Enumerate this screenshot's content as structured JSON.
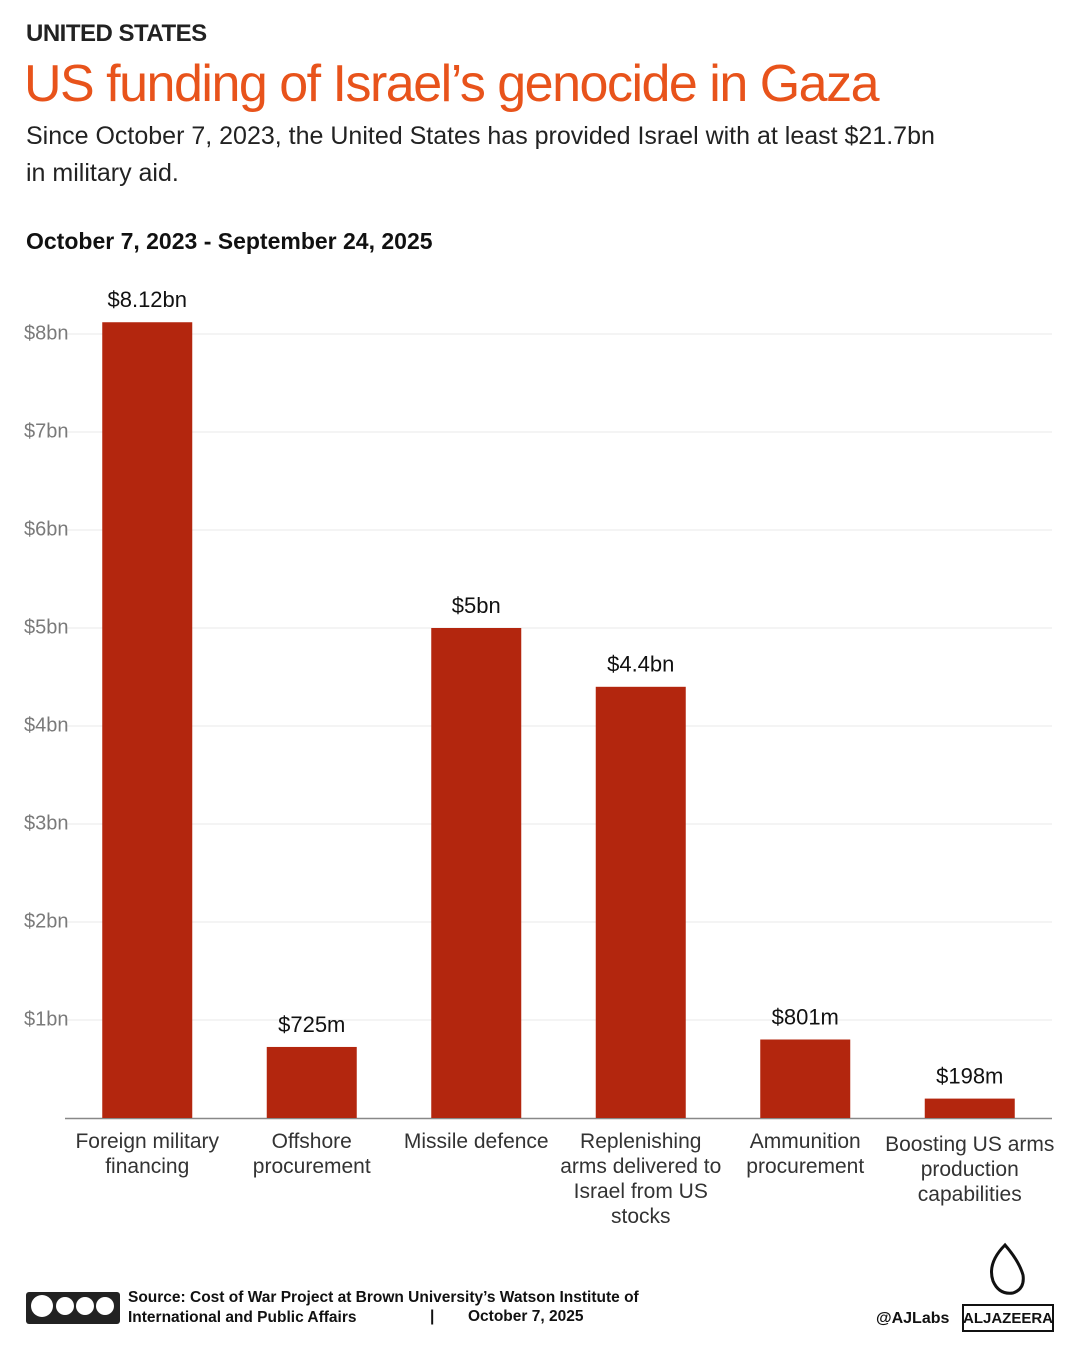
{
  "kicker": "UNITED STATES",
  "chart_data": {
    "type": "bar",
    "title": "US funding of Israel’s genocide in Gaza",
    "subtitle": "Since October 7, 2023, the United States has provided Israel with at least $21.7bn in military aid.",
    "period": "October 7, 2023 - September 24, 2025",
    "categories": [
      "Foreign military financing",
      "Offshore procurement",
      "Missile defence",
      "Replenishing arms delivered to Israel from US stocks",
      "Ammunition procurement",
      "Boosting US arms production capabilities"
    ],
    "values": [
      8.12,
      0.725,
      5,
      4.4,
      0.801,
      0.198
    ],
    "value_labels": [
      "$8.12bn",
      "$725m",
      "$5bn",
      "$4.4bn",
      "$801m",
      "$198m"
    ],
    "color": "#b3260e",
    "ylim": [
      0,
      8.5
    ],
    "yticks": [
      {
        "value": 1,
        "label": "$1bn"
      },
      {
        "value": 2,
        "label": "$2bn"
      },
      {
        "value": 3,
        "label": "$3bn"
      },
      {
        "value": 4,
        "label": "$4bn"
      },
      {
        "value": 5,
        "label": "$5bn"
      },
      {
        "value": 6,
        "label": "$6bn"
      },
      {
        "value": 7,
        "label": "$7bn"
      },
      {
        "value": 8,
        "label": "$8bn"
      }
    ],
    "grid": true
  },
  "footer": {
    "source": "Source:  Cost of War Project at Brown University’s Watson Institute of International and Public Affairs",
    "separator": "|",
    "date": "October 7, 2025",
    "handle": "@AJLabs",
    "brand": "ALJAZEERA"
  }
}
